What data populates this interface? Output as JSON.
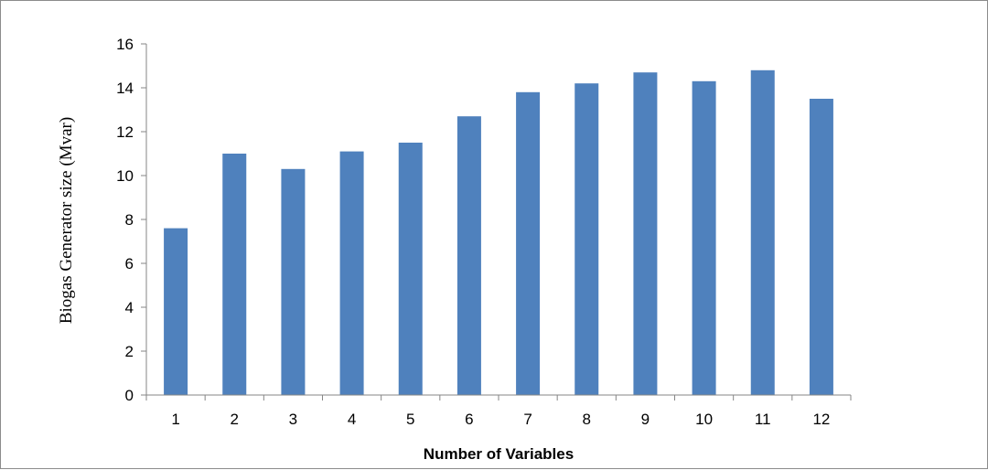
{
  "chart_data": {
    "type": "bar",
    "title": "",
    "xlabel": "Number of Variables",
    "ylabel": "Biogas Generator size (Mvar)",
    "categories": [
      "1",
      "2",
      "3",
      "4",
      "5",
      "6",
      "7",
      "8",
      "9",
      "10",
      "11",
      "12"
    ],
    "values": [
      7.6,
      11.0,
      10.3,
      11.1,
      11.5,
      12.7,
      13.8,
      14.2,
      14.7,
      14.3,
      14.8,
      13.5
    ],
    "ylim": [
      0,
      16
    ],
    "yticks": [
      0,
      2,
      4,
      6,
      8,
      10,
      12,
      14,
      16
    ],
    "grid": false,
    "legend": "none",
    "bar_color": "#4f81bd",
    "axis_color": "#868686"
  }
}
